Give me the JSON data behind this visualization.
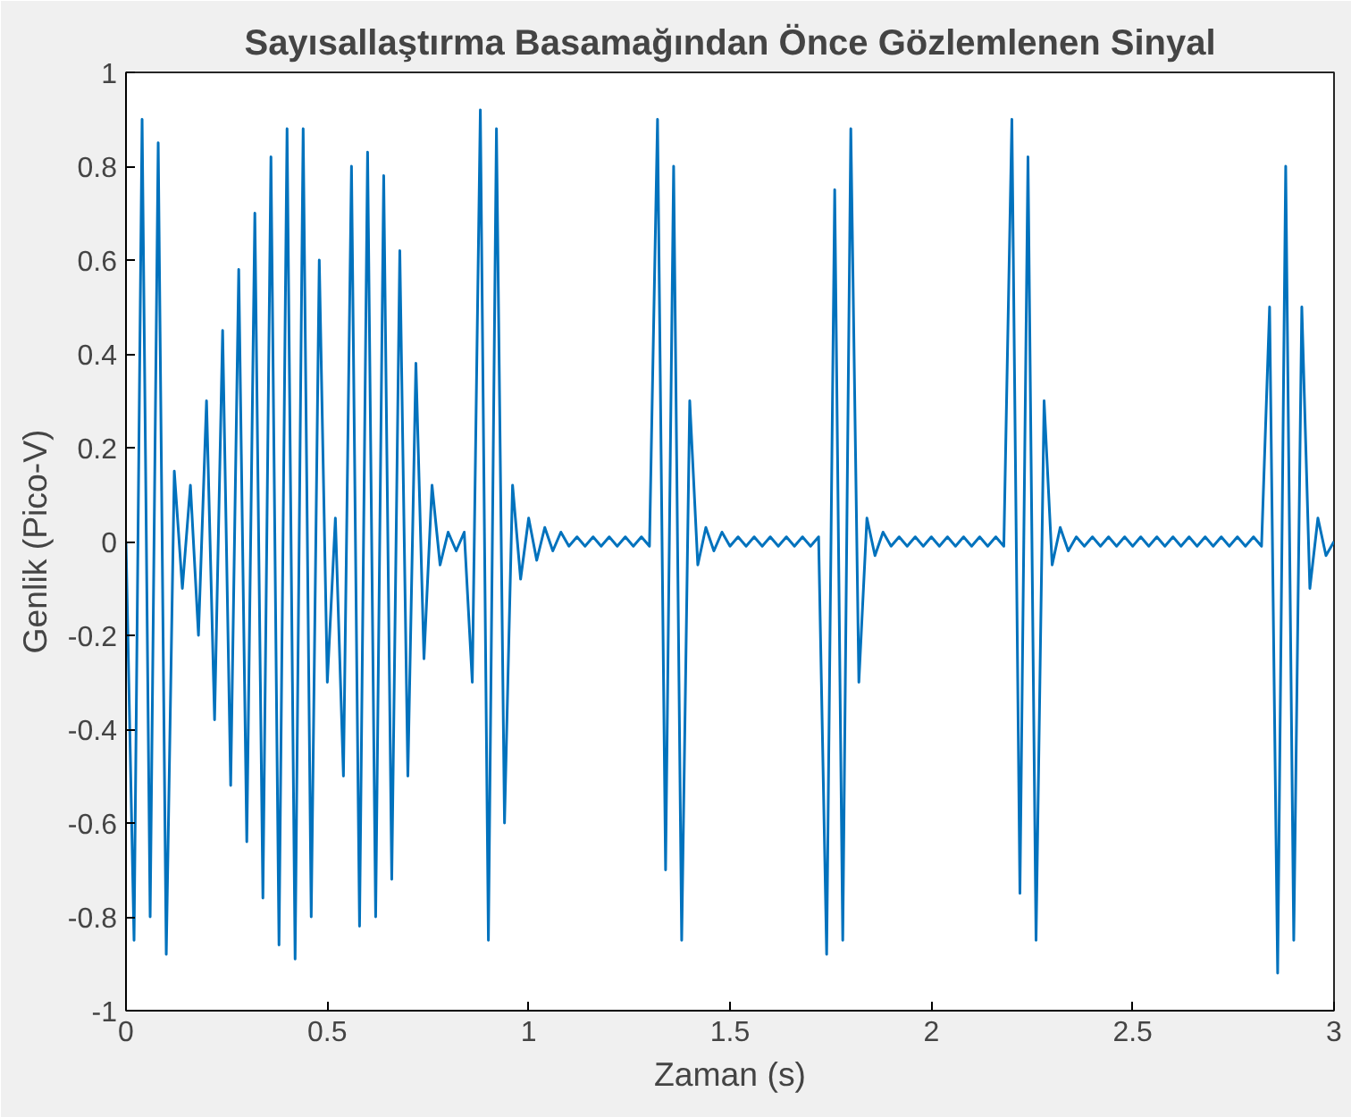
{
  "chart_data": {
    "type": "line",
    "title": "Sayısallaştırma Basamağından Önce Gözlemlenen Sinyal",
    "xlabel": "Zaman (s)",
    "ylabel": "Genlik (Pico-V)",
    "xlim": [
      0,
      3
    ],
    "xticks": [
      0,
      0.5,
      1,
      1.5,
      2,
      2.5,
      3
    ],
    "ylim": [
      -1,
      1
    ],
    "yticks": [
      -1,
      -0.8,
      -0.6,
      -0.4,
      -0.2,
      0,
      0.2,
      0.4,
      0.6,
      0.8,
      1
    ],
    "grid": false,
    "marker": "none",
    "line_style": "solid",
    "series": [
      {
        "color": "#0072bd",
        "x": [
          0,
          0.02,
          0.04,
          0.06,
          0.08,
          0.1,
          0.12,
          0.14,
          0.16,
          0.18,
          0.2,
          0.22,
          0.24,
          0.26,
          0.28,
          0.3,
          0.32,
          0.34,
          0.36,
          0.38,
          0.4,
          0.42,
          0.44,
          0.46,
          0.48,
          0.5,
          0.52,
          0.54,
          0.56,
          0.58,
          0.6,
          0.62,
          0.64,
          0.66,
          0.68,
          0.7,
          0.72,
          0.74,
          0.76,
          0.78,
          0.8,
          0.82,
          0.84,
          0.86,
          0.88,
          0.9,
          0.92,
          0.94,
          0.96,
          0.98,
          1,
          1.02,
          1.04,
          1.06,
          1.08,
          1.1,
          1.12,
          1.14,
          1.16,
          1.18,
          1.2,
          1.22,
          1.24,
          1.26,
          1.28,
          1.3,
          1.32,
          1.34,
          1.36,
          1.38,
          1.4,
          1.42,
          1.44,
          1.46,
          1.48,
          1.5,
          1.52,
          1.54,
          1.56,
          1.58,
          1.6,
          1.62,
          1.64,
          1.66,
          1.68,
          1.7,
          1.72,
          1.74,
          1.76,
          1.78,
          1.8,
          1.82,
          1.84,
          1.86,
          1.88,
          1.9,
          1.92,
          1.94,
          1.96,
          1.98,
          2,
          2.02,
          2.04,
          2.06,
          2.08,
          2.1,
          2.12,
          2.14,
          2.16,
          2.18,
          2.2,
          2.22,
          2.24,
          2.26,
          2.28,
          2.3,
          2.32,
          2.34,
          2.36,
          2.38,
          2.4,
          2.42,
          2.44,
          2.46,
          2.48,
          2.5,
          2.52,
          2.54,
          2.56,
          2.58,
          2.6,
          2.62,
          2.64,
          2.66,
          2.68,
          2.7,
          2.72,
          2.74,
          2.76,
          2.78,
          2.8,
          2.82,
          2.84,
          2.86,
          2.88,
          2.9,
          2.92,
          2.94,
          2.96,
          2.98,
          3
        ],
        "values": [
          0,
          -0.85,
          0.9,
          -0.8,
          0.85,
          -0.88,
          0.15,
          -0.1,
          0.12,
          -0.2,
          0.3,
          -0.38,
          0.45,
          -0.52,
          0.58,
          -0.64,
          0.7,
          -0.76,
          0.82,
          -0.86,
          0.88,
          -0.89,
          0.88,
          -0.8,
          0.6,
          -0.3,
          0.05,
          -0.5,
          0.8,
          -0.82,
          0.83,
          -0.8,
          0.78,
          -0.72,
          0.62,
          -0.5,
          0.38,
          -0.25,
          0.12,
          -0.05,
          0.02,
          -0.02,
          0.02,
          -0.3,
          0.92,
          -0.85,
          0.88,
          -0.6,
          0.12,
          -0.08,
          0.05,
          -0.04,
          0.03,
          -0.02,
          0.02,
          -0.01,
          0.01,
          -0.01,
          0.01,
          -0.01,
          0.01,
          -0.01,
          0.01,
          -0.01,
          0.01,
          -0.01,
          0.9,
          -0.7,
          0.8,
          -0.85,
          0.3,
          -0.05,
          0.03,
          -0.02,
          0.02,
          -0.01,
          0.01,
          -0.01,
          0.01,
          -0.01,
          0.01,
          -0.01,
          0.01,
          -0.01,
          0.01,
          -0.01,
          0.01,
          -0.88,
          0.75,
          -0.85,
          0.88,
          -0.3,
          0.05,
          -0.03,
          0.02,
          -0.01,
          0.01,
          -0.01,
          0.01,
          -0.01,
          0.01,
          -0.01,
          0.01,
          -0.01,
          0.01,
          -0.01,
          0.01,
          -0.01,
          0.01,
          -0.01,
          0.9,
          -0.75,
          0.82,
          -0.85,
          0.3,
          -0.05,
          0.03,
          -0.02,
          0.01,
          -0.01,
          0.01,
          -0.01,
          0.01,
          -0.01,
          0.01,
          -0.01,
          0.01,
          -0.01,
          0.01,
          -0.01,
          0.01,
          -0.01,
          0.01,
          -0.01,
          0.01,
          -0.01,
          0.01,
          -0.01,
          0.01,
          -0.01,
          0.01,
          -0.01,
          0.5,
          -0.92,
          0.8,
          -0.85,
          0.5,
          -0.1,
          0.05,
          -0.03,
          0
        ]
      }
    ]
  }
}
